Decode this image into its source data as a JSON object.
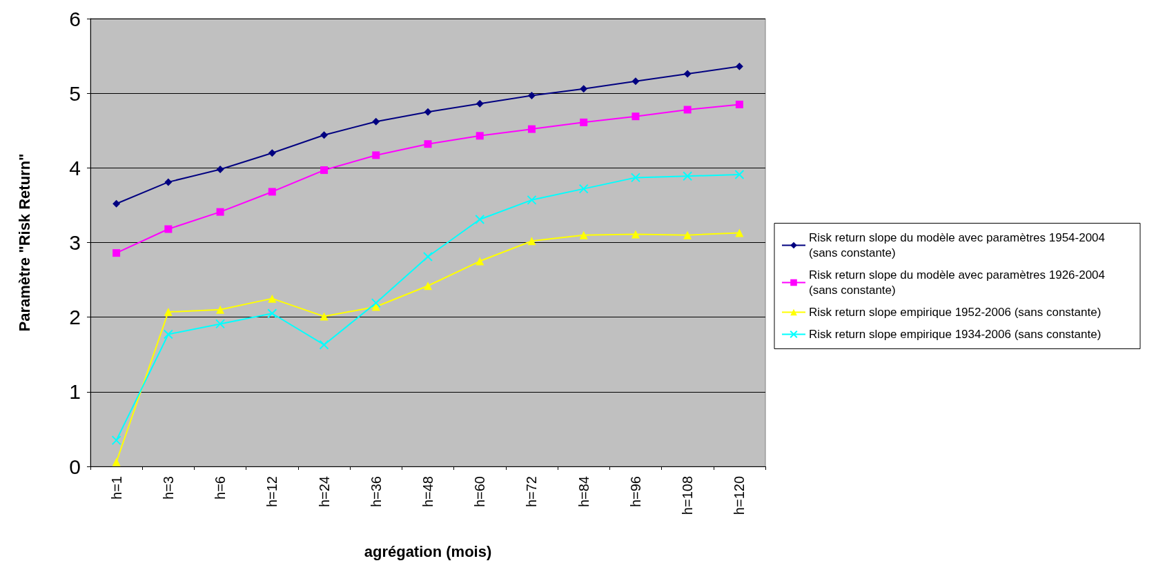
{
  "chart_data": {
    "type": "line",
    "xlabel": "agrégation (mois)",
    "ylabel": "Paramètre \"Risk Return\"",
    "categories": [
      "h=1",
      "h=3",
      "h=6",
      "h=12",
      "h=24",
      "h=36",
      "h=48",
      "h=60",
      "h=72",
      "h=84",
      "h=96",
      "h=108",
      "h=120"
    ],
    "ylim": [
      0,
      6
    ],
    "yticks": [
      0,
      1,
      2,
      3,
      4,
      5,
      6
    ],
    "grid": "y",
    "legend": "right",
    "series": [
      {
        "name": "Risk return slope du modèle avec paramètres 1954-2004 (sans constante)",
        "color": "#000080",
        "marker": "diamond",
        "values": [
          3.52,
          3.81,
          3.98,
          4.2,
          4.44,
          4.62,
          4.75,
          4.86,
          4.97,
          5.06,
          5.16,
          5.26,
          5.36
        ]
      },
      {
        "name": "Risk return slope du modèle avec paramètres 1926-2004 (sans constante)",
        "color": "#ff00ff",
        "marker": "square",
        "values": [
          2.86,
          3.18,
          3.41,
          3.68,
          3.97,
          4.17,
          4.32,
          4.43,
          4.52,
          4.61,
          4.69,
          4.78,
          4.85
        ]
      },
      {
        "name": "Risk return slope empirique 1952-2006 (sans constante)",
        "color": "#ffff00",
        "marker": "triangle",
        "values": [
          0.06,
          2.07,
          2.1,
          2.25,
          2.01,
          2.14,
          2.42,
          2.75,
          3.02,
          3.1,
          3.11,
          3.1,
          3.13
        ]
      },
      {
        "name": "Risk return slope empirique 1934-2006 (sans constante)",
        "color": "#00ffff",
        "marker": "cross",
        "values": [
          0.35,
          1.77,
          1.91,
          2.05,
          1.63,
          2.19,
          2.81,
          3.31,
          3.57,
          3.72,
          3.87,
          3.89,
          3.91
        ]
      }
    ]
  }
}
